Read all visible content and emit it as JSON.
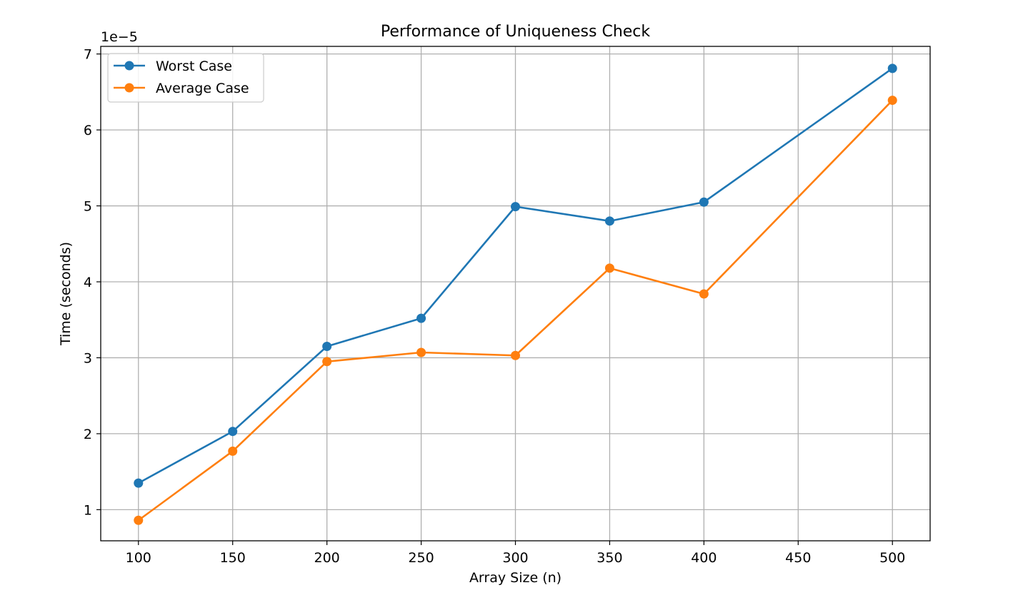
{
  "chart_data": {
    "type": "line",
    "title": "Performance of Uniqueness Check",
    "xlabel": "Array Size (n)",
    "ylabel": "Time (seconds)",
    "y_offset_label": "1e−5",
    "y_scale_exponent": -5,
    "xlim": [
      80,
      520
    ],
    "ylim": [
      0.59,
      7.1
    ],
    "xticks": [
      100,
      150,
      200,
      250,
      300,
      350,
      400,
      450,
      500
    ],
    "xtick_labels": [
      "100",
      "150",
      "200",
      "250",
      "300",
      "350",
      "400",
      "450",
      "500"
    ],
    "yticks": [
      1,
      2,
      3,
      4,
      5,
      6,
      7
    ],
    "ytick_labels": [
      "1",
      "2",
      "3",
      "4",
      "5",
      "6",
      "7"
    ],
    "grid": true,
    "legend_position": "top-left",
    "x": [
      100,
      150,
      200,
      250,
      300,
      350,
      400,
      500
    ],
    "series": [
      {
        "name": "Worst Case",
        "color": "#1f77b4",
        "values": [
          1.35,
          2.03,
          3.15,
          3.52,
          4.99,
          4.8,
          5.05,
          6.81
        ]
      },
      {
        "name": "Average Case",
        "color": "#ff7f0e",
        "values": [
          0.86,
          1.77,
          2.95,
          3.07,
          3.03,
          4.18,
          3.84,
          6.39
        ]
      }
    ]
  }
}
